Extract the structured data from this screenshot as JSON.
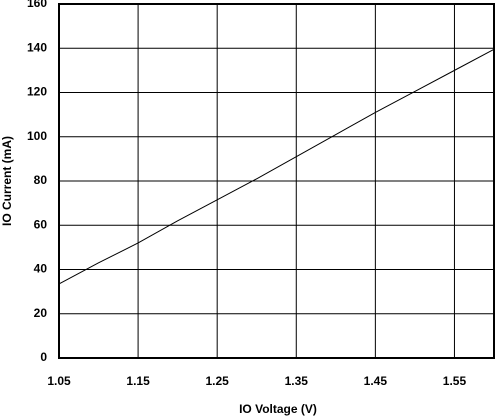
{
  "chart_data": {
    "type": "line",
    "x_label": "IO Voltage (V)",
    "y_label": "IO Current (mA)",
    "x": [
      1.05,
      1.1,
      1.15,
      1.2,
      1.25,
      1.3,
      1.35,
      1.4,
      1.45,
      1.5,
      1.55,
      1.6
    ],
    "series": [
      {
        "color": "#000000",
        "values": [
          33.5,
          43,
          52,
          62,
          71.5,
          81,
          91,
          101,
          111,
          120.5,
          130,
          139.5
        ]
      }
    ],
    "xlim": [
      1.05,
      1.6
    ],
    "xticks": [
      1.05,
      1.15,
      1.25,
      1.35,
      1.45,
      1.55
    ],
    "ylim": [
      0,
      160
    ],
    "yticks": [
      0,
      20,
      40,
      60,
      80,
      100,
      120,
      140,
      160
    ],
    "grid": true
  }
}
